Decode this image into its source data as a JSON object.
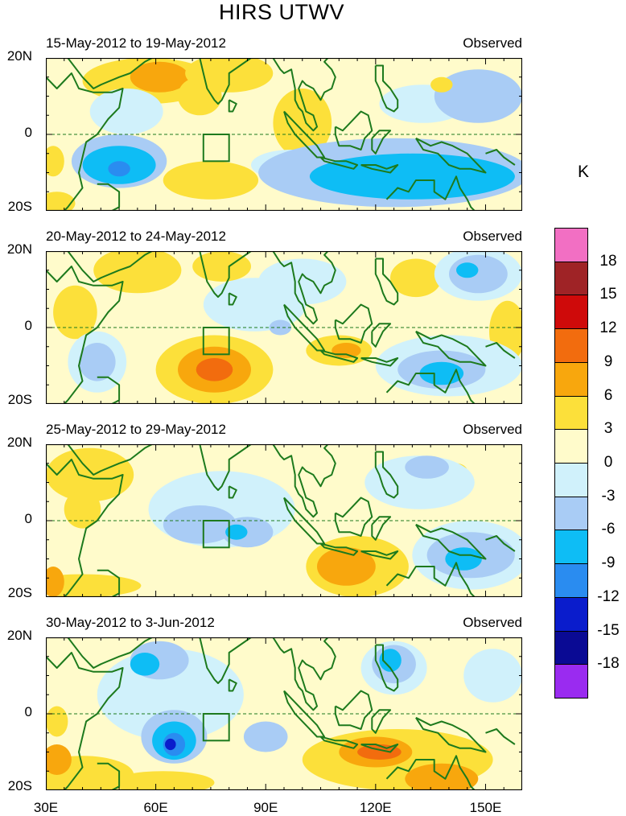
{
  "figure": {
    "title": "HIRS UTWV",
    "unit": "K",
    "x_ticks": [
      "30E",
      "60E",
      "90E",
      "120E",
      "150E"
    ],
    "x_tick_values": [
      30,
      60,
      90,
      120,
      150
    ],
    "lon_range": [
      30,
      160
    ],
    "lat_range": [
      -20,
      20
    ],
    "y_ticks": [
      "20N",
      "0",
      "20S"
    ],
    "y_tick_values": [
      20,
      0,
      -20
    ]
  },
  "colorbar": {
    "labels": [
      "18",
      "15",
      "12",
      "9",
      "6",
      "3",
      "0",
      "-3",
      "-6",
      "-9",
      "-12",
      "-15",
      "-18"
    ],
    "colors": [
      "#f26fc3",
      "#9f2326",
      "#cf0a0a",
      "#f26c0e",
      "#f8a70d",
      "#fce03a",
      "#fffbcb",
      "#d0f1fb",
      "#a9ccf5",
      "#0ebdf5",
      "#2a8cf0",
      "#0a1ccc",
      "#0a0a94",
      "#9a2bf0"
    ]
  },
  "panels": [
    {
      "title": "15-May-2012 to 19-May-2012",
      "label": "Observed",
      "features": [
        {
          "lon": 32,
          "lat": -7,
          "rx": 3,
          "ry": 4,
          "level": 5
        },
        {
          "lon": 33,
          "lat": -18,
          "rx": 5,
          "ry": 3,
          "level": 5
        },
        {
          "lon": 58,
          "lat": 14,
          "rx": 18,
          "ry": 6,
          "level": 5
        },
        {
          "lon": 61,
          "lat": 15,
          "rx": 8,
          "ry": 4,
          "level": 4
        },
        {
          "lon": 72,
          "lat": 10,
          "rx": 6,
          "ry": 5,
          "level": 5
        },
        {
          "lon": 100,
          "lat": 3,
          "rx": 8,
          "ry": 9,
          "level": 5
        },
        {
          "lon": 75,
          "lat": -12,
          "rx": 13,
          "ry": 5,
          "level": 5
        },
        {
          "lon": 80,
          "lat": 16,
          "rx": 12,
          "ry": 5,
          "level": 5
        },
        {
          "lon": 52,
          "lat": 6,
          "rx": 10,
          "ry": 6,
          "level": 7
        },
        {
          "lon": 50,
          "lat": -7,
          "rx": 13,
          "ry": 7,
          "level": 8
        },
        {
          "lon": 50,
          "lat": -8,
          "rx": 10,
          "ry": 5,
          "level": 9
        },
        {
          "lon": 50,
          "lat": -9,
          "rx": 3,
          "ry": 2,
          "level": 10
        },
        {
          "lon": 97,
          "lat": -8,
          "rx": 11,
          "ry": 4,
          "level": 7
        },
        {
          "lon": 125,
          "lat": -10,
          "rx": 37,
          "ry": 9,
          "level": 8
        },
        {
          "lon": 130,
          "lat": -11,
          "rx": 28,
          "ry": 6,
          "level": 9
        },
        {
          "lon": 133,
          "lat": 8,
          "rx": 12,
          "ry": 5,
          "level": 7
        },
        {
          "lon": 148,
          "lat": 10,
          "rx": 12,
          "ry": 7,
          "level": 8
        },
        {
          "lon": 138,
          "lat": 13,
          "rx": 3,
          "ry": 2,
          "level": 5
        }
      ]
    },
    {
      "title": "20-May-2012 to 24-May-2012",
      "label": "Observed",
      "features": [
        {
          "lon": 55,
          "lat": 15,
          "rx": 12,
          "ry": 6,
          "level": 5
        },
        {
          "lon": 78,
          "lat": 16,
          "rx": 8,
          "ry": 4,
          "level": 5
        },
        {
          "lon": 76,
          "lat": -11,
          "rx": 16,
          "ry": 9,
          "level": 5
        },
        {
          "lon": 76,
          "lat": -11,
          "rx": 10,
          "ry": 6,
          "level": 4
        },
        {
          "lon": 76,
          "lat": -11,
          "rx": 5,
          "ry": 3,
          "level": 3
        },
        {
          "lon": 110,
          "lat": -6,
          "rx": 9,
          "ry": 4,
          "level": 5
        },
        {
          "lon": 112,
          "lat": -6,
          "rx": 4,
          "ry": 2,
          "level": 4
        },
        {
          "lon": 131,
          "lat": 13,
          "rx": 7,
          "ry": 5,
          "level": 5
        },
        {
          "lon": 156,
          "lat": -1,
          "rx": 5,
          "ry": 8,
          "level": 5
        },
        {
          "lon": 38,
          "lat": 4,
          "rx": 6,
          "ry": 7,
          "level": 5
        },
        {
          "lon": 87,
          "lat": 6,
          "rx": 14,
          "ry": 7,
          "level": 7
        },
        {
          "lon": 100,
          "lat": 12,
          "rx": 12,
          "ry": 6,
          "level": 7
        },
        {
          "lon": 44,
          "lat": -9,
          "rx": 8,
          "ry": 8,
          "level": 7
        },
        {
          "lon": 44,
          "lat": -9,
          "rx": 5,
          "ry": 5,
          "level": 8
        },
        {
          "lon": 148,
          "lat": 14,
          "rx": 12,
          "ry": 7,
          "level": 7
        },
        {
          "lon": 148,
          "lat": 14,
          "rx": 8,
          "ry": 5,
          "level": 8
        },
        {
          "lon": 145,
          "lat": 15,
          "rx": 3,
          "ry": 2,
          "level": 9
        },
        {
          "lon": 140,
          "lat": -10,
          "rx": 20,
          "ry": 8,
          "level": 7
        },
        {
          "lon": 138,
          "lat": -11,
          "rx": 12,
          "ry": 5,
          "level": 8
        },
        {
          "lon": 138,
          "lat": -12,
          "rx": 6,
          "ry": 3,
          "level": 9
        },
        {
          "lon": 94,
          "lat": 0,
          "rx": 3,
          "ry": 2,
          "level": 8
        }
      ]
    },
    {
      "title": "25-May-2012 to 29-May-2012",
      "label": "Observed",
      "features": [
        {
          "lon": 42,
          "lat": 12,
          "rx": 12,
          "ry": 7,
          "level": 5
        },
        {
          "lon": 40,
          "lat": 3,
          "rx": 5,
          "ry": 5,
          "level": 5
        },
        {
          "lon": 40,
          "lat": -17,
          "rx": 16,
          "ry": 3,
          "level": 5
        },
        {
          "lon": 32,
          "lat": -16,
          "rx": 3,
          "ry": 4,
          "level": 4
        },
        {
          "lon": 115,
          "lat": -12,
          "rx": 14,
          "ry": 8,
          "level": 5
        },
        {
          "lon": 112,
          "lat": -12,
          "rx": 8,
          "ry": 5,
          "level": 4
        },
        {
          "lon": 142,
          "lat": 13,
          "rx": 3,
          "ry": 2,
          "level": 5
        },
        {
          "lon": 78,
          "lat": 3,
          "rx": 20,
          "ry": 10,
          "level": 7
        },
        {
          "lon": 72,
          "lat": -1,
          "rx": 10,
          "ry": 5,
          "level": 8
        },
        {
          "lon": 85,
          "lat": -3,
          "rx": 7,
          "ry": 4,
          "level": 8
        },
        {
          "lon": 82,
          "lat": -3,
          "rx": 3,
          "ry": 2,
          "level": 9
        },
        {
          "lon": 132,
          "lat": 10,
          "rx": 15,
          "ry": 7,
          "level": 7
        },
        {
          "lon": 134,
          "lat": 14,
          "rx": 6,
          "ry": 3,
          "level": 8
        },
        {
          "lon": 146,
          "lat": -9,
          "rx": 16,
          "ry": 9,
          "level": 7
        },
        {
          "lon": 146,
          "lat": -9,
          "rx": 12,
          "ry": 6,
          "level": 8
        },
        {
          "lon": 144,
          "lat": -10,
          "rx": 5,
          "ry": 3,
          "level": 9
        }
      ]
    },
    {
      "title": "30-May-2012 to 3-Jun-2012",
      "label": "Observed",
      "features": [
        {
          "lon": 40,
          "lat": -16,
          "rx": 14,
          "ry": 5,
          "level": 5
        },
        {
          "lon": 33,
          "lat": -12,
          "rx": 4,
          "ry": 4,
          "level": 4
        },
        {
          "lon": 33,
          "lat": -2,
          "rx": 3,
          "ry": 4,
          "level": 5
        },
        {
          "lon": 62,
          "lat": -18,
          "rx": 14,
          "ry": 3,
          "level": 5
        },
        {
          "lon": 126,
          "lat": -12,
          "rx": 26,
          "ry": 8,
          "level": 5
        },
        {
          "lon": 120,
          "lat": -10,
          "rx": 10,
          "ry": 4,
          "level": 4
        },
        {
          "lon": 121,
          "lat": -10,
          "rx": 6,
          "ry": 2,
          "level": 3
        },
        {
          "lon": 138,
          "lat": -17,
          "rx": 10,
          "ry": 4,
          "level": 4
        },
        {
          "lon": 64,
          "lat": 5,
          "rx": 20,
          "ry": 12,
          "level": 7
        },
        {
          "lon": 61,
          "lat": 14,
          "rx": 8,
          "ry": 5,
          "level": 8
        },
        {
          "lon": 57,
          "lat": 13,
          "rx": 4,
          "ry": 3,
          "level": 9
        },
        {
          "lon": 65,
          "lat": -6,
          "rx": 9,
          "ry": 7,
          "level": 8
        },
        {
          "lon": 65,
          "lat": -7,
          "rx": 6,
          "ry": 5,
          "level": 9
        },
        {
          "lon": 65,
          "lat": -8,
          "rx": 3,
          "ry": 3,
          "level": 10
        },
        {
          "lon": 64,
          "lat": -8,
          "rx": 1.5,
          "ry": 1.5,
          "level": 11
        },
        {
          "lon": 90,
          "lat": -6,
          "rx": 6,
          "ry": 4,
          "level": 8
        },
        {
          "lon": 125,
          "lat": 12,
          "rx": 9,
          "ry": 7,
          "level": 7
        },
        {
          "lon": 125,
          "lat": 13,
          "rx": 6,
          "ry": 5,
          "level": 8
        },
        {
          "lon": 124,
          "lat": 14,
          "rx": 3,
          "ry": 3,
          "level": 9
        },
        {
          "lon": 152,
          "lat": 10,
          "rx": 8,
          "ry": 7,
          "level": 7
        }
      ]
    }
  ]
}
